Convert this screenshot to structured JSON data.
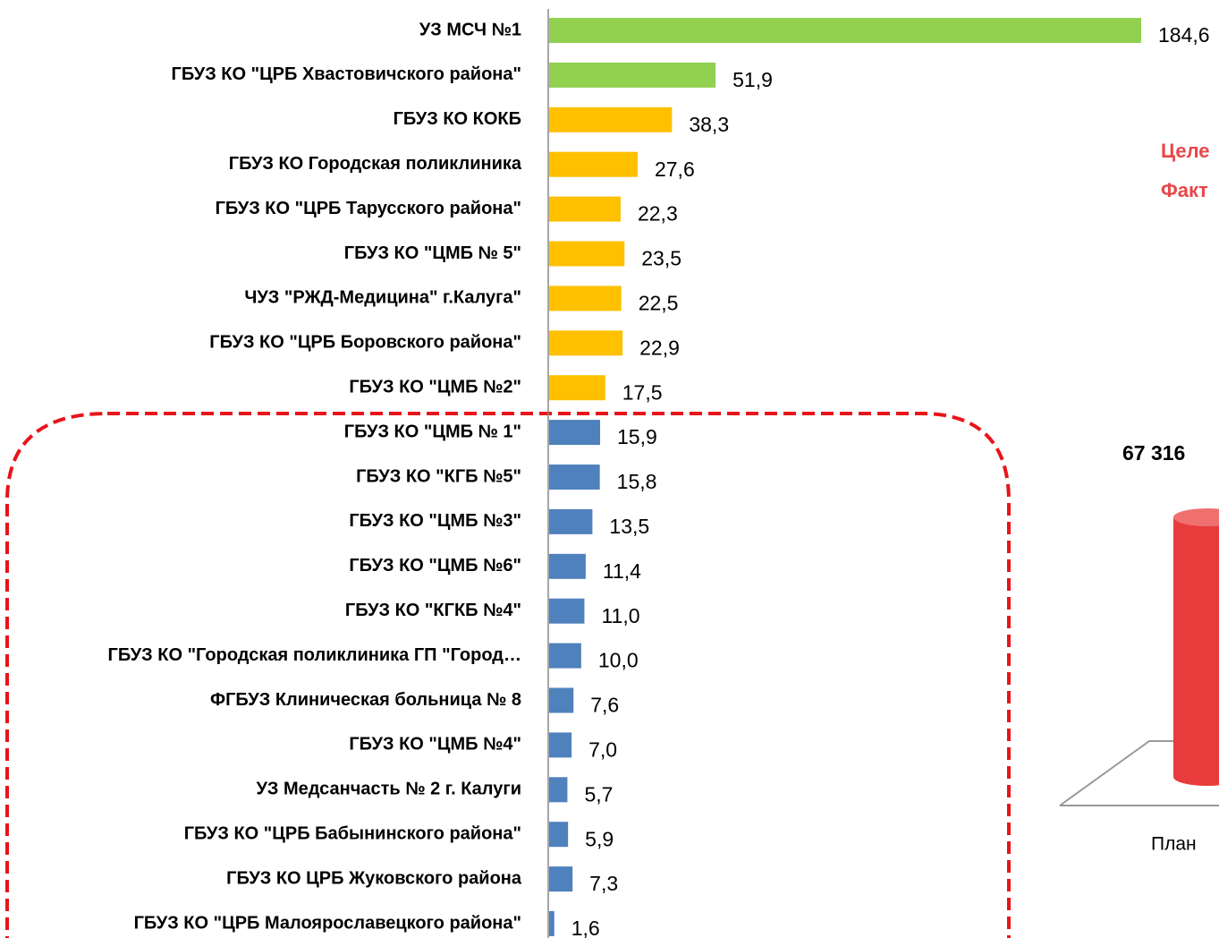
{
  "chart_data": [
    {
      "type": "hbar",
      "categories": [
        "УЗ МСЧ №1",
        "ГБУЗ КО \"ЦРБ Хвастовичского района\"",
        "ГБУЗ КО КОКБ",
        "ГБУЗ КО Городская поликлиника",
        "ГБУЗ КО \"ЦРБ Тарусского района\"",
        "ГБУЗ КО \"ЦМБ № 5\"",
        "ЧУЗ \"РЖД-Медицина\" г.Калуга\"",
        "ГБУЗ КО \"ЦРБ Боровского района\"",
        "ГБУЗ КО \"ЦМБ №2\"",
        "ГБУЗ КО \"ЦМБ № 1\"",
        "ГБУЗ КО \"КГБ №5\"",
        "ГБУЗ КО \"ЦМБ №3\"",
        "ГБУЗ КО \"ЦМБ №6\"",
        "ГБУЗ КО \"КГКБ №4\"",
        "ГБУЗ КО \"Городская поликлиника ГП \"Город…",
        "ФГБУЗ Клиническая больница  № 8",
        "ГБУЗ КО \"ЦМБ №4\"",
        "УЗ Медсанчасть № 2 г. Калуги",
        "ГБУЗ КО \"ЦРБ  Бабынинского района\"",
        "ГБУЗ КО ЦРБ Жуковского района",
        "ГБУЗ КО \"ЦРБ Малоярославецкого района\""
      ],
      "values": [
        184.6,
        51.9,
        38.3,
        27.6,
        22.3,
        23.5,
        22.5,
        22.9,
        17.5,
        15.9,
        15.8,
        13.5,
        11.4,
        11.0,
        10.0,
        7.6,
        7.0,
        5.7,
        5.9,
        7.3,
        1.6
      ],
      "value_labels": [
        "184,6",
        "51,9",
        "38,3",
        "27,6",
        "22,3",
        "23,5",
        "22,5",
        "22,9",
        "17,5",
        "15,9",
        "15,8",
        "13,5",
        "11,4",
        "11,0",
        "10,0",
        "7,6",
        "7,0",
        "5,7",
        "5,9",
        "7,3",
        "1,6"
      ],
      "colors": [
        "#92d050",
        "#92d050",
        "#ffc000",
        "#ffc000",
        "#ffc000",
        "#ffc000",
        "#ffc000",
        "#ffc000",
        "#ffc000",
        "#4f81bd",
        "#4f81bd",
        "#4f81bd",
        "#4f81bd",
        "#4f81bd",
        "#4f81bd",
        "#4f81bd",
        "#4f81bd",
        "#4f81bd",
        "#4f81bd",
        "#4f81bd",
        "#4f81bd"
      ]
    },
    {
      "type": "cylinder",
      "annotations": [
        "Целе",
        "Факт"
      ],
      "categories": [
        "План"
      ],
      "values": [
        67316
      ],
      "value_labels": [
        "67 316"
      ],
      "color": "#e83c3c"
    }
  ]
}
